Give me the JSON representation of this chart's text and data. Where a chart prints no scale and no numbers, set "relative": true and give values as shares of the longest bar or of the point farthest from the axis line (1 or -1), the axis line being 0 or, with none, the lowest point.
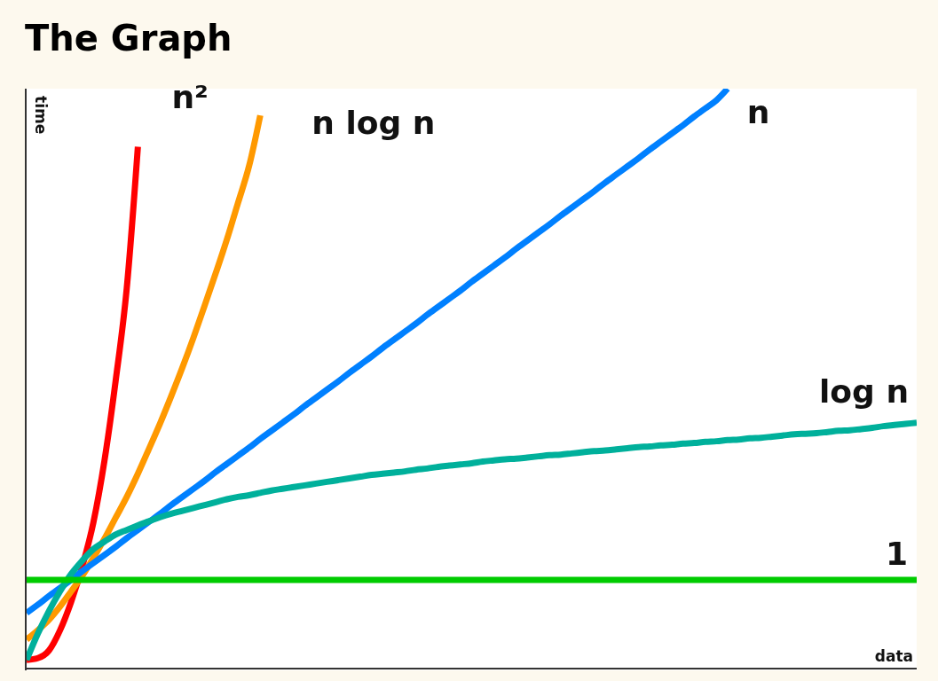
{
  "chart_data": {
    "type": "line",
    "title": "The Graph",
    "xlabel": "data",
    "ylabel": "time",
    "relative": true,
    "legend": false,
    "grid": false,
    "marker": "none",
    "categories": [
      null,
      null,
      null,
      null,
      null,
      null,
      null,
      null,
      null,
      null,
      null,
      null,
      null,
      null,
      null,
      null,
      null,
      null,
      null,
      null,
      null,
      null,
      null,
      null,
      null,
      null,
      null,
      null,
      null,
      null,
      null,
      null,
      null,
      null,
      null,
      null,
      null,
      null,
      null,
      null,
      null,
      null,
      null,
      null,
      null,
      null,
      null,
      null,
      null,
      null,
      null,
      null,
      null,
      null,
      null,
      null,
      null,
      null,
      null,
      null,
      null,
      null,
      null,
      null,
      null,
      null,
      null,
      null,
      null,
      null,
      null,
      null,
      null,
      null,
      null,
      null,
      null,
      null,
      null,
      null,
      null
    ],
    "series": [
      {
        "name": "n²",
        "color": "#ff0000",
        "values": [
          0.015,
          0.018,
          0.031,
          0.066,
          0.115,
          0.176,
          0.252,
          0.359,
          0.496,
          0.656,
          0.9,
          null,
          null,
          null,
          null,
          null,
          null,
          null,
          null,
          null,
          null,
          null,
          null,
          null,
          null,
          null,
          null,
          null,
          null,
          null,
          null,
          null,
          null,
          null,
          null,
          null,
          null,
          null,
          null,
          null,
          null,
          null,
          null,
          null,
          null,
          null,
          null,
          null,
          null,
          null,
          null,
          null,
          null,
          null,
          null,
          null,
          null,
          null,
          null,
          null,
          null,
          null,
          null,
          null,
          null,
          null,
          null,
          null,
          null,
          null,
          null,
          null,
          null,
          null,
          null,
          null,
          null,
          null,
          null,
          null,
          null
        ]
      },
      {
        "name": "n log n",
        "color": "#ff9900",
        "values": [
          0.05,
          0.066,
          0.084,
          0.107,
          0.133,
          0.16,
          0.191,
          0.224,
          0.26,
          0.296,
          0.336,
          0.379,
          0.423,
          0.47,
          0.519,
          0.571,
          0.626,
          0.682,
          0.74,
          0.803,
          0.867,
          0.954,
          null,
          null,
          null,
          null,
          null,
          null,
          null,
          null,
          null,
          null,
          null,
          null,
          null,
          null,
          null,
          null,
          null,
          null,
          null,
          null,
          null,
          null,
          null,
          null,
          null,
          null,
          null,
          null,
          null,
          null,
          null,
          null,
          null,
          null,
          null,
          null,
          null,
          null,
          null,
          null,
          null,
          null,
          null,
          null,
          null,
          null,
          null,
          null,
          null,
          null,
          null,
          null,
          null,
          null,
          null,
          null,
          null,
          null,
          null
        ]
      },
      {
        "name": "n",
        "color": "#0080ff",
        "values": [
          0.096,
          0.11,
          0.125,
          0.139,
          0.153,
          0.168,
          0.182,
          0.196,
          0.21,
          0.225,
          0.239,
          0.253,
          0.267,
          0.282,
          0.296,
          0.31,
          0.324,
          0.339,
          0.353,
          0.367,
          0.381,
          0.396,
          0.41,
          0.424,
          0.438,
          0.453,
          0.467,
          0.481,
          0.495,
          0.51,
          0.524,
          0.538,
          0.553,
          0.567,
          0.581,
          0.595,
          0.61,
          0.624,
          0.638,
          0.652,
          0.667,
          0.681,
          0.695,
          0.709,
          0.724,
          0.738,
          0.752,
          0.766,
          0.781,
          0.795,
          0.809,
          0.823,
          0.838,
          0.852,
          0.866,
          0.88,
          0.895,
          0.909,
          0.923,
          0.937,
          0.952,
          0.966,
          0.98,
          1,
          null,
          null,
          null,
          null,
          null,
          null,
          null,
          null,
          null,
          null,
          null,
          null,
          null,
          null,
          null,
          null,
          null
        ]
      },
      {
        "name": "log n",
        "color": "#00b09b",
        "values": [
          0.015,
          0.06,
          0.099,
          0.133,
          0.163,
          0.186,
          0.206,
          0.219,
          0.231,
          0.239,
          0.247,
          0.254,
          0.261,
          0.267,
          0.272,
          0.277,
          0.282,
          0.287,
          0.292,
          0.296,
          0.299,
          0.303,
          0.307,
          0.31,
          0.313,
          0.316,
          0.319,
          0.322,
          0.325,
          0.328,
          0.331,
          0.334,
          0.336,
          0.338,
          0.34,
          0.343,
          0.345,
          0.348,
          0.35,
          0.352,
          0.354,
          0.357,
          0.359,
          0.361,
          0.362,
          0.364,
          0.366,
          0.368,
          0.369,
          0.371,
          0.373,
          0.375,
          0.376,
          0.378,
          0.38,
          0.382,
          0.383,
          0.385,
          0.386,
          0.388,
          0.389,
          0.391,
          0.392,
          0.394,
          0.395,
          0.397,
          0.398,
          0.4,
          0.402,
          0.404,
          0.405,
          0.406,
          0.408,
          0.41,
          0.411,
          0.413,
          0.415,
          0.418,
          0.42,
          0.422,
          0.424
        ]
      },
      {
        "name": "1",
        "color": "#00cc00",
        "values": [
          0.153,
          0.153,
          0.153,
          0.153,
          0.153,
          0.153,
          0.153,
          0.153,
          0.153,
          0.153,
          0.153,
          0.153,
          0.153,
          0.153,
          0.153,
          0.153,
          0.153,
          0.153,
          0.153,
          0.153,
          0.153,
          0.153,
          0.153,
          0.153,
          0.153,
          0.153,
          0.153,
          0.153,
          0.153,
          0.153,
          0.153,
          0.153,
          0.153,
          0.153,
          0.153,
          0.153,
          0.153,
          0.153,
          0.153,
          0.153,
          0.153,
          0.153,
          0.153,
          0.153,
          0.153,
          0.153,
          0.153,
          0.153,
          0.153,
          0.153,
          0.153,
          0.153,
          0.153,
          0.153,
          0.153,
          0.153,
          0.153,
          0.153,
          0.153,
          0.153,
          0.153,
          0.153,
          0.153,
          0.153,
          0.153,
          0.153,
          0.153,
          0.153,
          0.153,
          0.153,
          0.153,
          0.153,
          0.153,
          0.153,
          0.153,
          0.153,
          0.153,
          0.153,
          0.153,
          0.153,
          0.153
        ]
      }
    ]
  }
}
